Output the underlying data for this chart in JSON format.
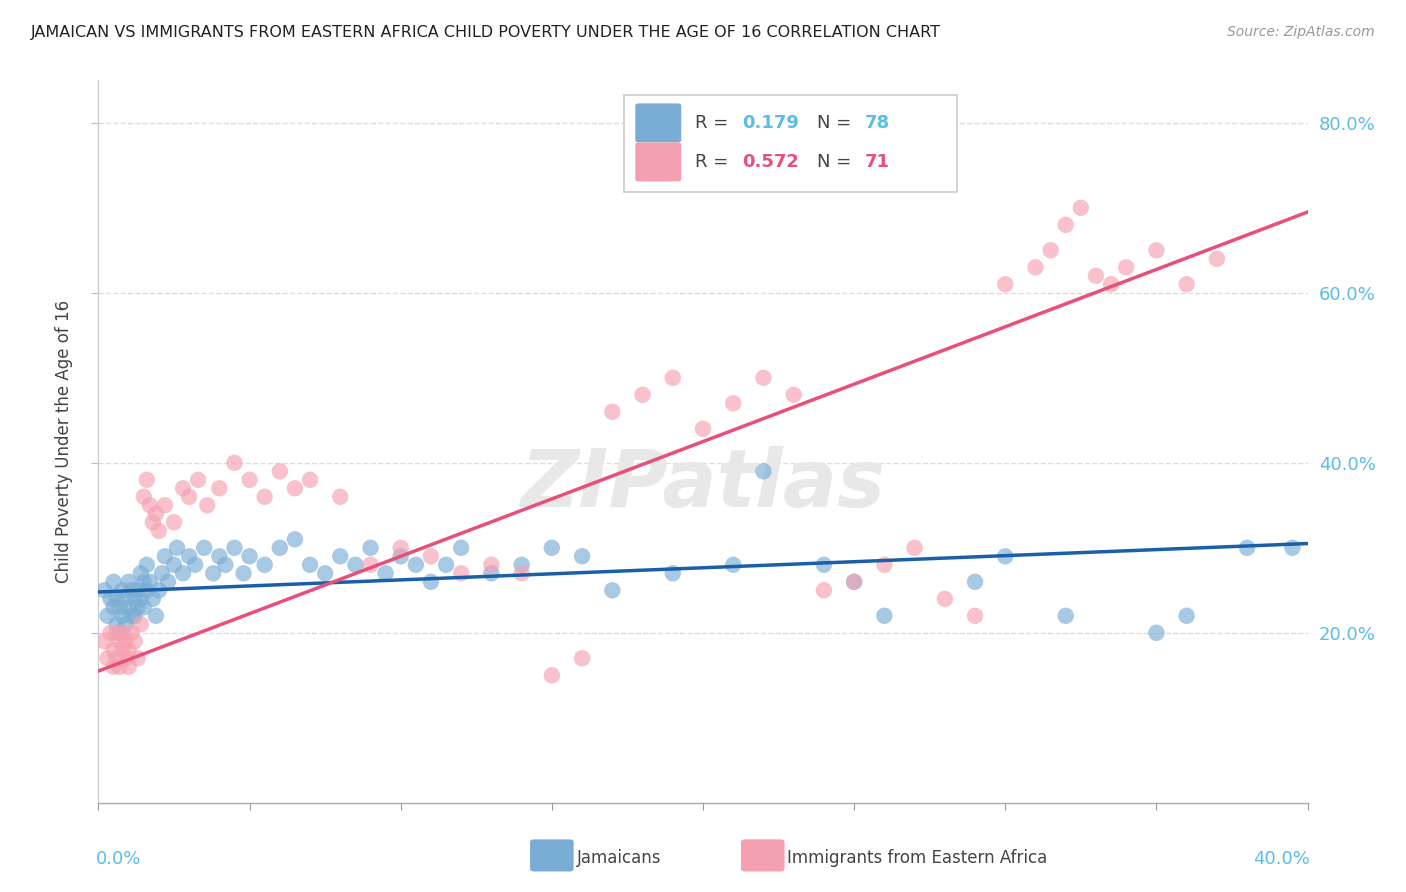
{
  "title": "JAMAICAN VS IMMIGRANTS FROM EASTERN AFRICA CHILD POVERTY UNDER THE AGE OF 16 CORRELATION CHART",
  "source": "Source: ZipAtlas.com",
  "ylabel": "Child Poverty Under the Age of 16",
  "xlim": [
    0.0,
    0.4
  ],
  "ylim": [
    0.0,
    0.85
  ],
  "ytick_vals": [
    0.2,
    0.4,
    0.6,
    0.8
  ],
  "ytick_labels": [
    "20.0%",
    "40.0%",
    "60.0%",
    "80.0%"
  ],
  "series1_label": "Jamaicans",
  "series2_label": "Immigrants from Eastern Africa",
  "watermark": "ZIPatlas",
  "blue_color": "#7aadd4",
  "pink_color": "#f5a0b0",
  "blue_line_color": "#1a5fa8",
  "pink_line_color": "#e8507a",
  "blue_R": 0.179,
  "pink_R": 0.572,
  "blue_N": 78,
  "pink_N": 71,
  "blue_x": [
    0.002,
    0.003,
    0.004,
    0.005,
    0.005,
    0.006,
    0.006,
    0.007,
    0.007,
    0.008,
    0.008,
    0.009,
    0.009,
    0.01,
    0.01,
    0.011,
    0.011,
    0.012,
    0.012,
    0.013,
    0.013,
    0.014,
    0.014,
    0.015,
    0.015,
    0.016,
    0.016,
    0.017,
    0.018,
    0.019,
    0.02,
    0.021,
    0.022,
    0.023,
    0.025,
    0.026,
    0.028,
    0.03,
    0.032,
    0.035,
    0.038,
    0.04,
    0.042,
    0.045,
    0.048,
    0.05,
    0.055,
    0.06,
    0.065,
    0.07,
    0.075,
    0.08,
    0.085,
    0.09,
    0.095,
    0.1,
    0.105,
    0.11,
    0.115,
    0.12,
    0.13,
    0.14,
    0.15,
    0.16,
    0.17,
    0.19,
    0.21,
    0.22,
    0.24,
    0.25,
    0.26,
    0.29,
    0.3,
    0.32,
    0.35,
    0.36,
    0.38,
    0.395
  ],
  "blue_y": [
    0.25,
    0.22,
    0.24,
    0.23,
    0.26,
    0.21,
    0.24,
    0.2,
    0.23,
    0.22,
    0.25,
    0.21,
    0.24,
    0.23,
    0.26,
    0.22,
    0.25,
    0.24,
    0.22,
    0.23,
    0.25,
    0.24,
    0.27,
    0.23,
    0.26,
    0.25,
    0.28,
    0.26,
    0.24,
    0.22,
    0.25,
    0.27,
    0.29,
    0.26,
    0.28,
    0.3,
    0.27,
    0.29,
    0.28,
    0.3,
    0.27,
    0.29,
    0.28,
    0.3,
    0.27,
    0.29,
    0.28,
    0.3,
    0.31,
    0.28,
    0.27,
    0.29,
    0.28,
    0.3,
    0.27,
    0.29,
    0.28,
    0.26,
    0.28,
    0.3,
    0.27,
    0.28,
    0.3,
    0.29,
    0.25,
    0.27,
    0.28,
    0.39,
    0.28,
    0.26,
    0.22,
    0.26,
    0.29,
    0.22,
    0.2,
    0.22,
    0.3,
    0.3
  ],
  "pink_x": [
    0.002,
    0.003,
    0.004,
    0.005,
    0.005,
    0.006,
    0.006,
    0.007,
    0.007,
    0.008,
    0.008,
    0.009,
    0.009,
    0.01,
    0.01,
    0.011,
    0.012,
    0.013,
    0.014,
    0.015,
    0.016,
    0.017,
    0.018,
    0.019,
    0.02,
    0.022,
    0.025,
    0.028,
    0.03,
    0.033,
    0.036,
    0.04,
    0.045,
    0.05,
    0.055,
    0.06,
    0.065,
    0.07,
    0.08,
    0.09,
    0.1,
    0.11,
    0.12,
    0.13,
    0.14,
    0.15,
    0.16,
    0.17,
    0.18,
    0.19,
    0.2,
    0.21,
    0.22,
    0.23,
    0.24,
    0.25,
    0.26,
    0.27,
    0.28,
    0.29,
    0.3,
    0.31,
    0.315,
    0.32,
    0.325,
    0.33,
    0.335,
    0.34,
    0.35,
    0.36,
    0.37
  ],
  "pink_y": [
    0.19,
    0.17,
    0.2,
    0.18,
    0.16,
    0.2,
    0.17,
    0.19,
    0.16,
    0.18,
    0.2,
    0.17,
    0.19,
    0.18,
    0.16,
    0.2,
    0.19,
    0.17,
    0.21,
    0.36,
    0.38,
    0.35,
    0.33,
    0.34,
    0.32,
    0.35,
    0.33,
    0.37,
    0.36,
    0.38,
    0.35,
    0.37,
    0.4,
    0.38,
    0.36,
    0.39,
    0.37,
    0.38,
    0.36,
    0.28,
    0.3,
    0.29,
    0.27,
    0.28,
    0.27,
    0.15,
    0.17,
    0.46,
    0.48,
    0.5,
    0.44,
    0.47,
    0.5,
    0.48,
    0.25,
    0.26,
    0.28,
    0.3,
    0.24,
    0.22,
    0.61,
    0.63,
    0.65,
    0.68,
    0.7,
    0.62,
    0.61,
    0.63,
    0.65,
    0.61,
    0.64
  ],
  "blue_line_x": [
    0.0,
    0.4
  ],
  "blue_line_y": [
    0.248,
    0.305
  ],
  "pink_line_x": [
    0.0,
    0.4
  ],
  "pink_line_y": [
    0.155,
    0.695
  ]
}
